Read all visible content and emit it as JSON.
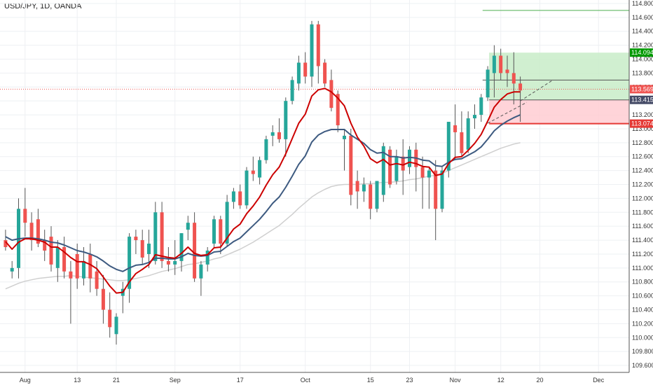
{
  "chart_data": {
    "type": "candlestick",
    "title": "USD/JPY, 1D, OANDA",
    "ylim": [
      109.5,
      114.85
    ],
    "y_ticks": [
      109.6,
      109.8,
      110.0,
      110.2,
      110.4,
      110.6,
      110.8,
      111.0,
      111.2,
      111.4,
      111.6,
      111.8,
      112.0,
      112.2,
      112.4,
      112.6,
      112.8,
      113.0,
      113.2,
      113.4,
      113.6,
      113.8,
      114.0,
      114.2,
      114.4,
      114.6,
      114.8
    ],
    "y_tick_labels": [
      "109.600",
      "109.800",
      "110.000",
      "110.200",
      "110.400",
      "110.600",
      "110.800",
      "111.000",
      "111.200",
      "111.400",
      "111.600",
      "111.800",
      "112.000",
      "112.200",
      "112.400",
      "112.600",
      "112.800",
      "113.000",
      "113.200",
      "113.400",
      "113.600",
      "113.800",
      "114.000",
      "114.200",
      "114.400",
      "114.600",
      "114.800"
    ],
    "x_ticks": [
      {
        "label": "Aug",
        "index": 3
      },
      {
        "label": "13",
        "index": 11
      },
      {
        "label": "21",
        "index": 17
      },
      {
        "label": "Sep",
        "index": 26
      },
      {
        "label": "17",
        "index": 36
      },
      {
        "label": "Oct",
        "index": 46
      },
      {
        "label": "15",
        "index": 56
      },
      {
        "label": "23",
        "index": 62
      },
      {
        "label": "Nov",
        "index": 69
      },
      {
        "label": "12",
        "index": 76
      },
      {
        "label": "20",
        "index": 82
      },
      {
        "label": "Dec",
        "index": 91
      }
    ],
    "grid": true,
    "colors": {
      "up": "#26a69a",
      "down": "#ef5350",
      "ema_fast": "#cc0000",
      "ema_slow": "#3d5a80",
      "sma_long": "#cfcfcf",
      "price_line": "#ef5350"
    },
    "candles": [
      {
        "o": 111.4,
        "h": 111.55,
        "l": 111.25,
        "c": 111.3
      },
      {
        "o": 110.95,
        "h": 111.1,
        "l": 110.85,
        "c": 111.0
      },
      {
        "o": 111.0,
        "h": 112.0,
        "l": 110.85,
        "c": 111.85
      },
      {
        "o": 111.85,
        "h": 112.15,
        "l": 111.45,
        "c": 111.65
      },
      {
        "o": 111.65,
        "h": 111.8,
        "l": 111.25,
        "c": 111.4
      },
      {
        "o": 111.7,
        "h": 111.85,
        "l": 111.3,
        "c": 111.35
      },
      {
        "o": 111.4,
        "h": 111.55,
        "l": 111.1,
        "c": 111.25
      },
      {
        "o": 111.45,
        "h": 111.6,
        "l": 110.95,
        "c": 111.05
      },
      {
        "o": 111.0,
        "h": 111.4,
        "l": 110.8,
        "c": 111.3
      },
      {
        "o": 111.3,
        "h": 111.45,
        "l": 110.85,
        "c": 110.95
      },
      {
        "o": 110.95,
        "h": 111.1,
        "l": 110.2,
        "c": 110.85
      },
      {
        "o": 111.2,
        "h": 111.35,
        "l": 110.7,
        "c": 110.85
      },
      {
        "o": 110.85,
        "h": 111.3,
        "l": 110.75,
        "c": 111.1
      },
      {
        "o": 111.2,
        "h": 111.35,
        "l": 110.65,
        "c": 110.85
      },
      {
        "o": 110.95,
        "h": 111.1,
        "l": 110.6,
        "c": 110.7
      },
      {
        "o": 110.7,
        "h": 110.9,
        "l": 110.2,
        "c": 110.4
      },
      {
        "o": 110.4,
        "h": 110.65,
        "l": 110.0,
        "c": 110.15
      },
      {
        "o": 110.05,
        "h": 110.35,
        "l": 109.9,
        "c": 110.3
      },
      {
        "o": 110.6,
        "h": 110.8,
        "l": 110.35,
        "c": 110.7
      },
      {
        "o": 110.7,
        "h": 111.5,
        "l": 110.5,
        "c": 111.45
      },
      {
        "o": 111.45,
        "h": 111.55,
        "l": 111.2,
        "c": 111.4
      },
      {
        "o": 111.4,
        "h": 111.55,
        "l": 111.05,
        "c": 111.15
      },
      {
        "o": 111.2,
        "h": 111.55,
        "l": 111.0,
        "c": 111.35
      },
      {
        "o": 111.1,
        "h": 111.95,
        "l": 111.05,
        "c": 111.8
      },
      {
        "o": 111.8,
        "h": 111.95,
        "l": 111.0,
        "c": 111.1
      },
      {
        "o": 111.1,
        "h": 111.3,
        "l": 110.95,
        "c": 111.05
      },
      {
        "o": 111.05,
        "h": 111.4,
        "l": 110.9,
        "c": 111.1
      },
      {
        "o": 111.1,
        "h": 111.5,
        "l": 110.95,
        "c": 111.5
      },
      {
        "o": 111.55,
        "h": 111.75,
        "l": 111.4,
        "c": 111.65
      },
      {
        "o": 111.65,
        "h": 111.8,
        "l": 110.8,
        "c": 110.85
      },
      {
        "o": 110.85,
        "h": 111.1,
        "l": 110.6,
        "c": 111.05
      },
      {
        "o": 111.05,
        "h": 111.3,
        "l": 110.95,
        "c": 111.25
      },
      {
        "o": 111.35,
        "h": 111.75,
        "l": 111.3,
        "c": 111.7
      },
      {
        "o": 111.7,
        "h": 111.75,
        "l": 111.2,
        "c": 111.35
      },
      {
        "o": 111.35,
        "h": 112.05,
        "l": 111.3,
        "c": 111.95
      },
      {
        "o": 111.95,
        "h": 112.15,
        "l": 111.85,
        "c": 112.1
      },
      {
        "o": 112.1,
        "h": 112.2,
        "l": 111.85,
        "c": 111.9
      },
      {
        "o": 111.9,
        "h": 112.45,
        "l": 111.85,
        "c": 112.4
      },
      {
        "o": 112.4,
        "h": 112.6,
        "l": 112.25,
        "c": 112.35
      },
      {
        "o": 112.3,
        "h": 112.6,
        "l": 112.2,
        "c": 112.55
      },
      {
        "o": 112.55,
        "h": 112.9,
        "l": 112.5,
        "c": 112.85
      },
      {
        "o": 112.9,
        "h": 113.05,
        "l": 112.75,
        "c": 112.95
      },
      {
        "o": 112.95,
        "h": 113.15,
        "l": 112.8,
        "c": 112.85
      },
      {
        "o": 112.85,
        "h": 113.45,
        "l": 112.6,
        "c": 113.4
      },
      {
        "o": 113.4,
        "h": 113.75,
        "l": 113.35,
        "c": 113.7
      },
      {
        "o": 113.65,
        "h": 114.05,
        "l": 113.55,
        "c": 113.95
      },
      {
        "o": 113.95,
        "h": 114.1,
        "l": 113.65,
        "c": 113.75
      },
      {
        "o": 113.75,
        "h": 114.55,
        "l": 113.6,
        "c": 114.5
      },
      {
        "o": 114.5,
        "h": 114.55,
        "l": 113.65,
        "c": 113.9
      },
      {
        "o": 113.95,
        "h": 114.0,
        "l": 113.6,
        "c": 113.65
      },
      {
        "o": 113.7,
        "h": 113.85,
        "l": 113.25,
        "c": 113.3
      },
      {
        "o": 113.5,
        "h": 113.55,
        "l": 112.95,
        "c": 113.05
      },
      {
        "o": 112.85,
        "h": 113.0,
        "l": 112.4,
        "c": 112.9
      },
      {
        "o": 112.9,
        "h": 113.0,
        "l": 111.9,
        "c": 112.05
      },
      {
        "o": 112.25,
        "h": 112.4,
        "l": 111.85,
        "c": 112.1
      },
      {
        "o": 112.1,
        "h": 112.3,
        "l": 111.95,
        "c": 112.2
      },
      {
        "o": 112.2,
        "h": 112.25,
        "l": 111.7,
        "c": 111.85
      },
      {
        "o": 111.85,
        "h": 112.25,
        "l": 111.8,
        "c": 112.25
      },
      {
        "o": 112.05,
        "h": 112.8,
        "l": 111.95,
        "c": 112.75
      },
      {
        "o": 112.7,
        "h": 112.75,
        "l": 112.15,
        "c": 112.2
      },
      {
        "o": 112.25,
        "h": 112.7,
        "l": 112.2,
        "c": 112.6
      },
      {
        "o": 112.6,
        "h": 112.85,
        "l": 112.05,
        "c": 112.4
      },
      {
        "o": 112.45,
        "h": 112.75,
        "l": 112.35,
        "c": 112.7
      },
      {
        "o": 112.7,
        "h": 112.8,
        "l": 112.1,
        "c": 112.45
      },
      {
        "o": 112.45,
        "h": 112.6,
        "l": 111.85,
        "c": 112.3
      },
      {
        "o": 112.3,
        "h": 112.45,
        "l": 111.85,
        "c": 112.4
      },
      {
        "o": 112.4,
        "h": 112.55,
        "l": 111.4,
        "c": 111.85
      },
      {
        "o": 111.85,
        "h": 112.45,
        "l": 111.8,
        "c": 112.4
      },
      {
        "o": 112.4,
        "h": 113.1,
        "l": 112.3,
        "c": 113.1
      },
      {
        "o": 113.05,
        "h": 113.35,
        "l": 112.55,
        "c": 112.95
      },
      {
        "o": 112.95,
        "h": 113.25,
        "l": 112.6,
        "c": 112.65
      },
      {
        "o": 112.7,
        "h": 113.25,
        "l": 112.65,
        "c": 113.15
      },
      {
        "o": 113.15,
        "h": 113.35,
        "l": 113.0,
        "c": 113.2
      },
      {
        "o": 113.2,
        "h": 113.5,
        "l": 113.1,
        "c": 113.45
      },
      {
        "o": 113.45,
        "h": 113.9,
        "l": 113.4,
        "c": 113.85
      },
      {
        "o": 113.8,
        "h": 114.2,
        "l": 113.45,
        "c": 114.05
      },
      {
        "o": 114.05,
        "h": 114.15,
        "l": 113.7,
        "c": 113.8
      },
      {
        "o": 113.85,
        "h": 114.05,
        "l": 113.6,
        "c": 113.8
      },
      {
        "o": 113.8,
        "h": 114.1,
        "l": 113.35,
        "c": 113.65
      },
      {
        "o": 113.65,
        "h": 113.75,
        "l": 113.1,
        "c": 113.55
      }
    ],
    "ema_fast": [
      111.38,
      111.27,
      111.37,
      111.42,
      111.42,
      111.4,
      111.37,
      111.3,
      111.3,
      111.23,
      111.15,
      111.09,
      111.09,
      111.05,
      110.99,
      110.87,
      110.74,
      110.64,
      110.65,
      110.8,
      110.92,
      110.98,
      111.05,
      111.19,
      111.17,
      111.15,
      111.14,
      111.21,
      111.3,
      111.21,
      111.18,
      111.19,
      111.29,
      111.3,
      111.43,
      111.56,
      111.63,
      111.78,
      111.89,
      112.02,
      112.19,
      112.34,
      112.45,
      112.64,
      112.86,
      113.08,
      113.21,
      113.47,
      113.56,
      113.58,
      113.53,
      113.44,
      113.33,
      113.08,
      112.88,
      112.75,
      112.57,
      112.51,
      112.56,
      112.48,
      112.5,
      112.48,
      112.52,
      112.5,
      112.46,
      112.45,
      112.33,
      112.35,
      112.5,
      112.59,
      112.6,
      112.69,
      112.79,
      112.92,
      113.11,
      113.31,
      113.42,
      113.5,
      113.53,
      113.53
    ],
    "ema_slow": [
      111.45,
      111.4,
      111.42,
      111.43,
      111.43,
      111.42,
      111.4,
      111.37,
      111.36,
      111.33,
      111.29,
      111.25,
      111.23,
      111.2,
      111.16,
      111.1,
      111.03,
      110.98,
      110.95,
      111.0,
      111.04,
      111.05,
      111.08,
      111.14,
      111.14,
      111.13,
      111.13,
      111.16,
      111.21,
      111.18,
      111.17,
      111.18,
      111.23,
      111.24,
      111.31,
      111.38,
      111.43,
      111.52,
      111.61,
      111.7,
      111.81,
      111.93,
      112.02,
      112.16,
      112.32,
      112.49,
      112.61,
      112.81,
      112.91,
      112.96,
      112.99,
      112.99,
      112.99,
      112.91,
      112.85,
      112.79,
      112.7,
      112.65,
      112.66,
      112.6,
      112.6,
      112.58,
      112.59,
      112.58,
      112.55,
      112.54,
      112.47,
      112.46,
      112.52,
      112.56,
      112.57,
      112.62,
      112.67,
      112.74,
      112.85,
      112.97,
      113.05,
      113.11,
      113.16,
      113.2
    ],
    "sma_long": [
      110.7,
      110.74,
      110.78,
      110.81,
      110.83,
      110.85,
      110.86,
      110.87,
      110.88,
      110.88,
      110.89,
      110.88,
      110.87,
      110.86,
      110.85,
      110.84,
      110.83,
      110.82,
      110.82,
      110.83,
      110.85,
      110.87,
      110.89,
      110.92,
      110.95,
      110.97,
      110.99,
      111.02,
      111.05,
      111.06,
      111.08,
      111.1,
      111.13,
      111.15,
      111.19,
      111.23,
      111.27,
      111.32,
      111.37,
      111.43,
      111.49,
      111.55,
      111.61,
      111.69,
      111.77,
      111.86,
      111.94,
      112.02,
      112.08,
      112.13,
      112.17,
      112.19,
      112.2,
      112.2,
      112.2,
      112.21,
      112.21,
      112.22,
      112.23,
      112.23,
      112.24,
      112.25,
      112.27,
      112.28,
      112.3,
      112.32,
      112.33,
      112.36,
      112.4,
      112.44,
      112.48,
      112.52,
      112.56,
      112.6,
      112.64,
      112.68,
      112.72,
      112.75,
      112.78,
      112.8
    ],
    "position": {
      "type": "long",
      "entry": 113.415,
      "target": 114.094,
      "stop": 113.074,
      "entry_label": "113.415",
      "target_label": "114.094",
      "stop_label": "113.074",
      "profit_color": "#c8ecc8",
      "loss_color": "#ffcdd2"
    },
    "current_price": 113.569,
    "current_price_label": "113.569",
    "horizontal_levels": [
      114.7,
      113.7
    ],
    "projection": [
      {
        "index": 79,
        "price": 113.4
      },
      {
        "index": 84,
        "price": 113.7
      }
    ]
  }
}
